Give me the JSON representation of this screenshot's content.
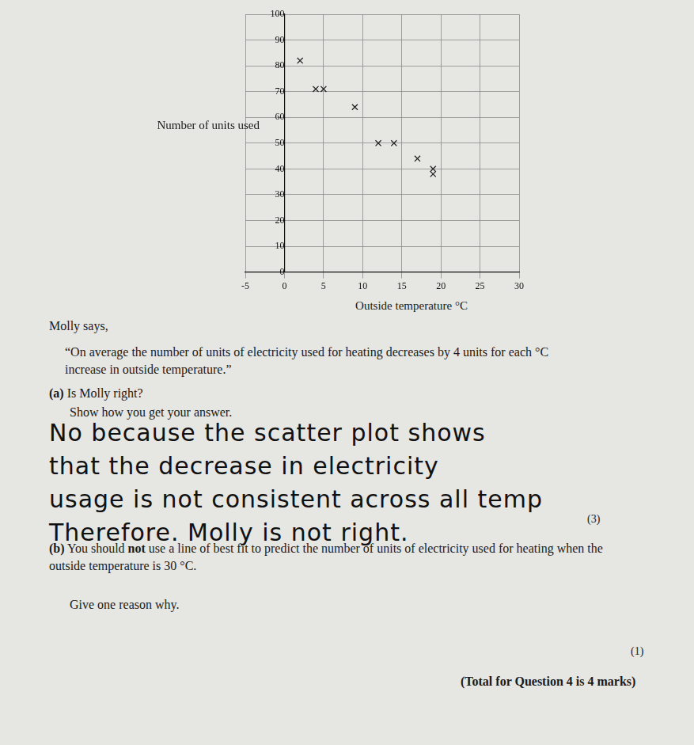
{
  "chart_data": {
    "type": "scatter",
    "x_label": "Outside temperature °C",
    "y_label": "Number of units used",
    "x": [
      2,
      4,
      5,
      9,
      12,
      14,
      17,
      19,
      19
    ],
    "values": [
      82,
      71,
      71,
      64,
      50,
      50,
      44,
      40,
      38
    ],
    "color": "#222222",
    "marker": "x",
    "xlim": [
      -5,
      30
    ],
    "xticks": [
      -5,
      0,
      5,
      10,
      15,
      20,
      25,
      30
    ],
    "ylim": [
      0,
      100
    ],
    "yticks": [
      0,
      10,
      20,
      30,
      40,
      50,
      60,
      70,
      80,
      90,
      100
    ],
    "grid": true
  },
  "page": {
    "intro": "Molly says,",
    "quote": "“On average the number of units of electricity used for heating decreases by 4 units for each °C increase in outside temperature.”",
    "part_a": {
      "label": "(a)",
      "question": "Is Molly right?",
      "instruction": "Show how you get your answer.",
      "answer_lines": [
        "No because the scatter plot shows",
        "that the decrease in electricity",
        "usage is not consistent across all temp",
        "Therefore. Molly is not right."
      ],
      "marks": "(3)"
    },
    "part_b": {
      "label": "(b)",
      "text_before": "You should",
      "emphasis": "not",
      "text_after": "use a line of best fit to predict the number of units of electricity used for heating when the outside temperature is 30 °C.",
      "instruction": "Give one reason why.",
      "marks": "(1)"
    },
    "total": "(Total for Question 4 is 4 marks)"
  }
}
